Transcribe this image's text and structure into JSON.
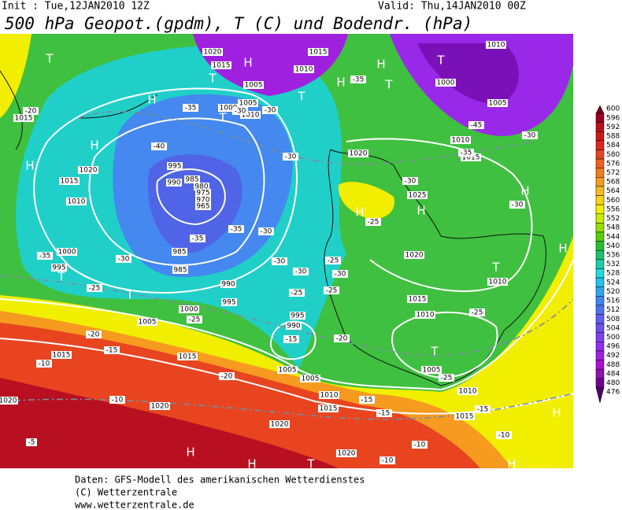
{
  "header": {
    "init": "Init : Tue,12JAN2010 12Z",
    "valid": "Valid: Thu,14JAN2010 00Z",
    "title": "500 hPa Geopot.(gpdm), T (C) und Bodendr. (hPa)"
  },
  "colorbar": {
    "levels": [
      600,
      596,
      592,
      588,
      584,
      580,
      576,
      572,
      568,
      564,
      560,
      556,
      552,
      548,
      544,
      540,
      536,
      532,
      528,
      524,
      520,
      516,
      512,
      508,
      504,
      500,
      496,
      492,
      488,
      484,
      480,
      476
    ],
    "colors": [
      "#7a0018",
      "#9a0020",
      "#b81020",
      "#cc1818",
      "#dc2820",
      "#e84420",
      "#f06020",
      "#f27c20",
      "#f69a20",
      "#f8b820",
      "#f8d410",
      "#f2ee00",
      "#c8ec00",
      "#94e000",
      "#58d000",
      "#28c030",
      "#20c070",
      "#20ccaa",
      "#20dcdc",
      "#20c4f0",
      "#30a8f0",
      "#4088f0",
      "#5070f0",
      "#6060f0",
      "#7050f0",
      "#8040f0",
      "#9030f0",
      "#a020e0",
      "#b010d0",
      "#9010b0",
      "#700090",
      "#500070"
    ]
  },
  "map": {
    "labels": [
      "T",
      "H",
      "H",
      "T",
      "T",
      "1020",
      "1015",
      "1010",
      "1015",
      "1005",
      "1000",
      "1005",
      "1010",
      "-30",
      "T",
      "H",
      "H",
      "T",
      "T",
      "1000",
      "1010",
      "1005",
      "-45",
      "1010",
      "1015",
      "-30",
      "H",
      "1015",
      "-20",
      "-40",
      "H",
      "1020",
      "1015",
      "1010",
      "995",
      "990",
      "985",
      "980",
      "975",
      "970",
      "965",
      "-35",
      "985",
      "1000",
      "995",
      "T",
      "-30",
      "985",
      "-25",
      "T",
      "-35",
      "990",
      "995",
      "1000",
      "1005",
      "-25",
      "-20",
      "-15",
      "1015",
      "-10",
      "1015",
      "-20",
      "1020",
      "-10",
      "1020",
      "-5",
      "1020",
      "H",
      "H",
      "T",
      "1020",
      "-10",
      "1005",
      "1005",
      "995",
      "990",
      "-15",
      "-20",
      "1010",
      "1015",
      "-15",
      "-15",
      "1015",
      "-15",
      "H",
      "-10",
      "-10",
      "H",
      "1020",
      "1025",
      "H",
      "H",
      "-25",
      "1020",
      "T",
      "1010",
      "H",
      "H",
      "-30",
      "-35",
      "-30",
      "-30",
      "-30",
      "-25",
      "-25",
      "-30",
      "-30",
      "-25",
      "1015",
      "1010",
      "T",
      "1005",
      "-25",
      "1010",
      "-30",
      "-35",
      "-30",
      "-35",
      "-35",
      "-25"
    ]
  },
  "footer": {
    "lines": [
      "Daten: GFS-Modell des amerikanischen Wetterdienstes",
      "(C) Wetterzentrale",
      "www.wetterzentrale.de"
    ]
  }
}
